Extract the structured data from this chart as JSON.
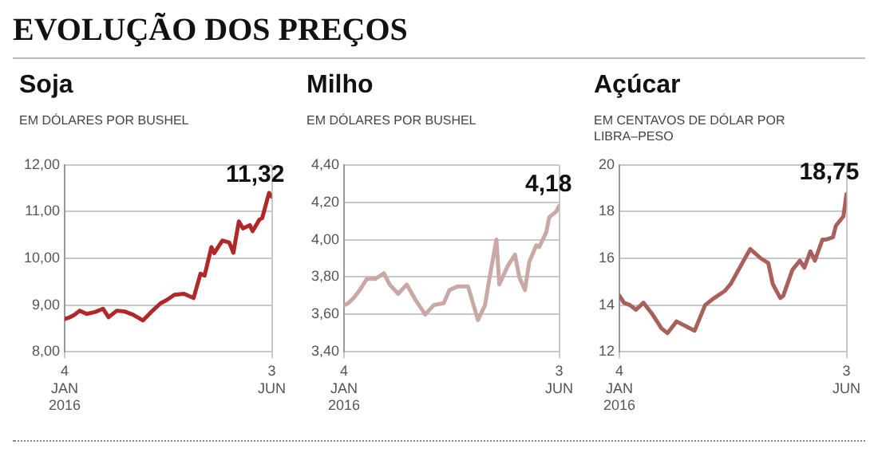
{
  "chart_data": [
    {
      "type": "line",
      "title": "Soja",
      "subtitle": "EM DÓLARES POR BUSHEL",
      "annotations": [
        "EVOLUÇÃO DOS PREÇOS",
        {
          "text": "11,32",
          "x": "2016-06-03",
          "y": 11.32
        }
      ],
      "x": [
        "2016-01-04",
        "2016-01-07",
        "2016-01-11",
        "2016-01-15",
        "2016-01-20",
        "2016-01-26",
        "2016-02-01",
        "2016-02-05",
        "2016-02-11",
        "2016-02-17",
        "2016-02-23",
        "2016-03-01",
        "2016-03-07",
        "2016-03-14",
        "2016-03-18",
        "2016-03-24",
        "2016-03-31",
        "2016-04-07",
        "2016-04-12",
        "2016-04-15",
        "2016-04-20",
        "2016-04-22",
        "2016-04-28",
        "2016-05-03",
        "2016-05-06",
        "2016-05-10",
        "2016-05-13",
        "2016-05-18",
        "2016-05-20",
        "2016-05-25",
        "2016-05-27",
        "2016-06-01",
        "2016-06-03"
      ],
      "series": [
        {
          "color": "#b0282a",
          "values": [
            8.7,
            8.73,
            8.79,
            8.88,
            8.81,
            8.85,
            8.92,
            8.74,
            8.88,
            8.86,
            8.79,
            8.67,
            8.85,
            9.04,
            9.1,
            9.22,
            9.24,
            9.15,
            9.67,
            9.63,
            10.24,
            10.11,
            10.38,
            10.34,
            10.12,
            10.79,
            10.64,
            10.71,
            10.58,
            10.83,
            10.86,
            11.4,
            11.32
          ]
        }
      ],
      "xlim": [
        "2016-01-04",
        "2016-06-03"
      ],
      "xticks": [
        {
          "value": "2016-01-04",
          "label": "4 JAN 2016"
        },
        {
          "value": "2016-06-03",
          "label": "3 JUN"
        }
      ],
      "ylim": [
        8,
        12
      ],
      "yticks": [
        {
          "value": 8,
          "label": "8,00"
        },
        {
          "value": 9,
          "label": "9,00"
        },
        {
          "value": 10,
          "label": "10,00"
        },
        {
          "value": 11,
          "label": "11,00"
        },
        {
          "value": 12,
          "label": "12,00"
        }
      ],
      "grid": true,
      "legend": false,
      "marker": "none",
      "line_style": "solid"
    },
    {
      "type": "line",
      "title": "Milho",
      "subtitle": "EM DÓLARES POR BUSHEL",
      "annotations": [
        {
          "text": "4,18",
          "x": "2016-06-03",
          "y": 4.18
        }
      ],
      "x": [
        "2016-01-04",
        "2016-01-07",
        "2016-01-11",
        "2016-01-15",
        "2016-01-20",
        "2016-01-26",
        "2016-02-01",
        "2016-02-05",
        "2016-02-11",
        "2016-02-17",
        "2016-02-23",
        "2016-03-01",
        "2016-03-07",
        "2016-03-14",
        "2016-03-18",
        "2016-03-24",
        "2016-03-31",
        "2016-04-07",
        "2016-04-12",
        "2016-04-15",
        "2016-04-20",
        "2016-04-22",
        "2016-04-28",
        "2016-05-03",
        "2016-05-06",
        "2016-05-10",
        "2016-05-13",
        "2016-05-18",
        "2016-05-20",
        "2016-05-25",
        "2016-05-27",
        "2016-06-01",
        "2016-06-03"
      ],
      "series": [
        {
          "color": "#c9a8a5",
          "values": [
            3.65,
            3.66,
            3.69,
            3.73,
            3.79,
            3.79,
            3.82,
            3.76,
            3.71,
            3.76,
            3.68,
            3.6,
            3.65,
            3.66,
            3.73,
            3.75,
            3.75,
            3.57,
            3.65,
            3.79,
            4.0,
            3.76,
            3.86,
            3.92,
            3.8,
            3.73,
            3.88,
            3.97,
            3.96,
            4.04,
            4.12,
            4.15,
            4.18
          ]
        }
      ],
      "xlim": [
        "2016-01-04",
        "2016-06-03"
      ],
      "xticks": [
        {
          "value": "2016-01-04",
          "label": "4 JAN 2016"
        },
        {
          "value": "2016-06-03",
          "label": "3 JUN"
        }
      ],
      "ylim": [
        3.4,
        4.4
      ],
      "yticks": [
        {
          "value": 3.4,
          "label": "3,40"
        },
        {
          "value": 3.6,
          "label": "3,60"
        },
        {
          "value": 3.8,
          "label": "3,80"
        },
        {
          "value": 4.0,
          "label": "4,00"
        },
        {
          "value": 4.2,
          "label": "4,20"
        },
        {
          "value": 4.4,
          "label": "4,40"
        }
      ],
      "grid": true,
      "legend": false,
      "marker": "none",
      "line_style": "solid"
    },
    {
      "type": "line",
      "title": "Açúcar",
      "subtitle": "EM CENTAVOS DE DÓLAR POR LIBRA–PESO",
      "annotations": [
        {
          "text": "18,75",
          "x": "2016-06-03",
          "y": 18.75
        }
      ],
      "x": [
        "2016-01-04",
        "2016-01-07",
        "2016-01-11",
        "2016-01-15",
        "2016-01-20",
        "2016-01-26",
        "2016-02-01",
        "2016-02-05",
        "2016-02-11",
        "2016-02-17",
        "2016-02-23",
        "2016-03-01",
        "2016-03-07",
        "2016-03-14",
        "2016-03-18",
        "2016-03-24",
        "2016-03-31",
        "2016-04-07",
        "2016-04-12",
        "2016-04-15",
        "2016-04-20",
        "2016-04-22",
        "2016-04-28",
        "2016-05-03",
        "2016-05-06",
        "2016-05-10",
        "2016-05-13",
        "2016-05-18",
        "2016-05-20",
        "2016-05-25",
        "2016-05-27",
        "2016-06-01",
        "2016-06-03"
      ],
      "series": [
        {
          "color": "#a8605b",
          "values": [
            14.4,
            14.1,
            14.0,
            13.8,
            14.1,
            13.6,
            13.0,
            12.8,
            13.3,
            13.1,
            12.9,
            14.0,
            14.3,
            14.6,
            14.9,
            15.6,
            16.4,
            16.0,
            15.8,
            14.9,
            14.3,
            14.4,
            15.5,
            15.9,
            15.6,
            16.3,
            15.9,
            16.8,
            16.8,
            16.9,
            17.4,
            17.8,
            18.75
          ]
        }
      ],
      "xlim": [
        "2016-01-04",
        "2016-06-03"
      ],
      "xticks": [
        {
          "value": "2016-01-04",
          "label": "4 JAN 2016"
        },
        {
          "value": "2016-06-03",
          "label": "3 JUN"
        }
      ],
      "ylim": [
        12,
        20
      ],
      "yticks": [
        12,
        14,
        16,
        18,
        20
      ],
      "grid": true,
      "legend": false,
      "marker": "none",
      "line_style": "solid"
    }
  ]
}
